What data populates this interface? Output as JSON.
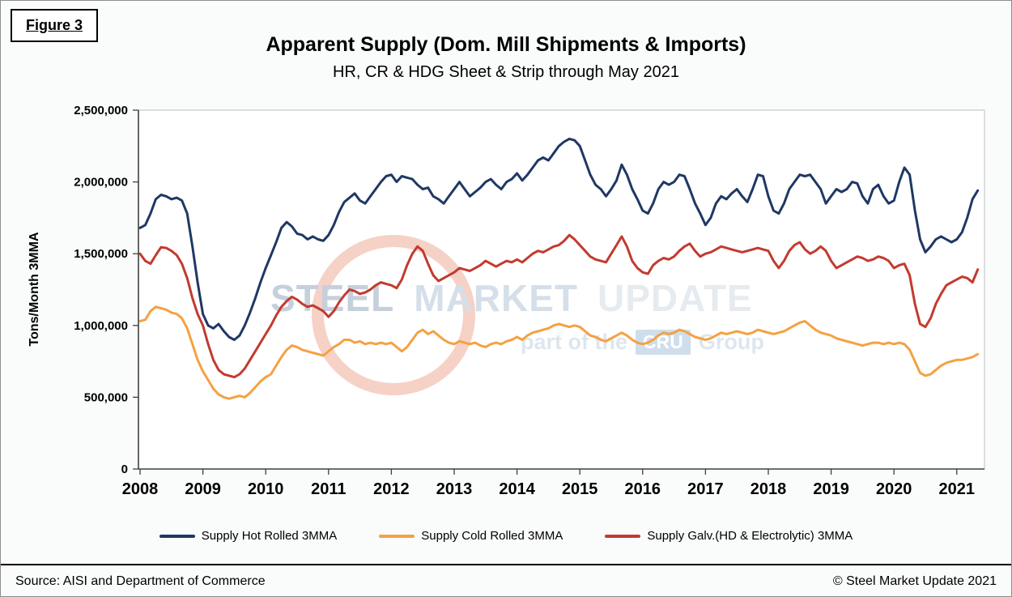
{
  "figure_label": "Figure 3",
  "title": "Apparent Supply (Dom. Mill Shipments & Imports)",
  "subtitle": "HR, CR & HDG Sheet & Strip through May 2021",
  "y_axis_title": "Tons/Month 3MMA",
  "watermark": {
    "word1": "STEEL",
    "word2": "MARKET",
    "word3": "UPDATE",
    "tagline_prefix": "part of the",
    "tagline_box": "CRU",
    "tagline_suffix": "Group"
  },
  "legend": {
    "items": [
      {
        "id": "hot-rolled",
        "label": "Supply Hot Rolled 3MMA",
        "color": "#1F3864"
      },
      {
        "id": "cold-rolled",
        "label": "Supply Cold Rolled 3MMA",
        "color": "#F5A142"
      },
      {
        "id": "galvanized",
        "label": "Supply Galv.(HD & Electrolytic) 3MMA",
        "color": "#C33A2F"
      }
    ]
  },
  "footer": {
    "source": "Source: AISI and Department of Commerce",
    "copyright": "© Steel Market Update 2021"
  },
  "chart_data": {
    "type": "line",
    "title": "Apparent Supply (Dom. Mill Shipments & Imports)",
    "subtitle": "HR, CR & HDG Sheet & Strip through May 2021",
    "ylabel": "Tons/Month 3MMA",
    "ylim": [
      0,
      2500000
    ],
    "grid": false,
    "legend_position": "bottom",
    "x_unit": "monthly observations, Jan 2008 through May 2021 (3-month moving average)",
    "x_start_year": 2008,
    "x_interval_months": 1,
    "x_ticks": [
      "2008",
      "2009",
      "2010",
      "2011",
      "2012",
      "2013",
      "2014",
      "2015",
      "2016",
      "2017",
      "2018",
      "2019",
      "2020",
      "2021"
    ],
    "y_ticks": [
      {
        "value": 0,
        "label": "0"
      },
      {
        "value": 500000,
        "label": "500,000"
      },
      {
        "value": 1000000,
        "label": "1,000,000"
      },
      {
        "value": 1500000,
        "label": "1,500,000"
      },
      {
        "value": 2000000,
        "label": "2,000,000"
      },
      {
        "value": 2500000,
        "label": "2,500,000"
      }
    ],
    "series": [
      {
        "id": "hot-rolled",
        "name": "Supply Hot Rolled 3MMA",
        "color": "#1F3864",
        "values": [
          1680000,
          1700000,
          1780000,
          1880000,
          1910000,
          1900000,
          1880000,
          1890000,
          1870000,
          1780000,
          1550000,
          1300000,
          1080000,
          1000000,
          980000,
          1010000,
          960000,
          920000,
          900000,
          930000,
          1000000,
          1090000,
          1190000,
          1300000,
          1400000,
          1490000,
          1580000,
          1680000,
          1720000,
          1690000,
          1640000,
          1630000,
          1600000,
          1620000,
          1600000,
          1590000,
          1630000,
          1700000,
          1790000,
          1860000,
          1890000,
          1920000,
          1870000,
          1850000,
          1900000,
          1950000,
          2000000,
          2040000,
          2050000,
          2000000,
          2040000,
          2030000,
          2020000,
          1980000,
          1950000,
          1960000,
          1900000,
          1880000,
          1850000,
          1900000,
          1950000,
          2000000,
          1950000,
          1900000,
          1930000,
          1960000,
          2000000,
          2020000,
          1980000,
          1950000,
          2000000,
          2020000,
          2060000,
          2010000,
          2050000,
          2100000,
          2150000,
          2170000,
          2150000,
          2200000,
          2250000,
          2280000,
          2300000,
          2290000,
          2250000,
          2150000,
          2050000,
          1980000,
          1950000,
          1900000,
          1950000,
          2010000,
          2120000,
          2050000,
          1950000,
          1880000,
          1800000,
          1780000,
          1850000,
          1950000,
          2000000,
          1980000,
          2000000,
          2050000,
          2040000,
          1950000,
          1850000,
          1780000,
          1700000,
          1750000,
          1850000,
          1900000,
          1880000,
          1920000,
          1950000,
          1900000,
          1860000,
          1950000,
          2050000,
          2040000,
          1900000,
          1800000,
          1780000,
          1850000,
          1950000,
          2000000,
          2050000,
          2040000,
          2050000,
          2000000,
          1950000,
          1850000,
          1900000,
          1950000,
          1930000,
          1950000,
          2000000,
          1990000,
          1900000,
          1850000,
          1950000,
          1980000,
          1900000,
          1850000,
          1870000,
          2000000,
          2100000,
          2050000,
          1800000,
          1600000,
          1510000,
          1550000,
          1600000,
          1620000,
          1600000,
          1580000,
          1600000,
          1650000,
          1750000,
          1880000,
          1940000
        ]
      },
      {
        "id": "cold-rolled",
        "name": "Supply Cold Rolled 3MMA",
        "color": "#F5A142",
        "values": [
          1030000,
          1040000,
          1100000,
          1130000,
          1120000,
          1110000,
          1090000,
          1080000,
          1050000,
          980000,
          870000,
          760000,
          680000,
          620000,
          560000,
          520000,
          500000,
          490000,
          500000,
          510000,
          500000,
          530000,
          570000,
          610000,
          640000,
          660000,
          720000,
          780000,
          830000,
          860000,
          850000,
          830000,
          820000,
          810000,
          800000,
          790000,
          820000,
          850000,
          870000,
          900000,
          900000,
          880000,
          890000,
          870000,
          880000,
          870000,
          880000,
          870000,
          880000,
          850000,
          820000,
          850000,
          900000,
          950000,
          970000,
          940000,
          960000,
          930000,
          900000,
          880000,
          870000,
          890000,
          880000,
          870000,
          880000,
          860000,
          850000,
          870000,
          880000,
          870000,
          890000,
          900000,
          920000,
          900000,
          930000,
          950000,
          960000,
          970000,
          980000,
          1000000,
          1010000,
          1000000,
          990000,
          1000000,
          990000,
          960000,
          930000,
          920000,
          900000,
          890000,
          910000,
          930000,
          950000,
          930000,
          900000,
          880000,
          870000,
          880000,
          900000,
          930000,
          950000,
          940000,
          950000,
          970000,
          960000,
          940000,
          920000,
          910000,
          900000,
          910000,
          930000,
          950000,
          940000,
          950000,
          960000,
          950000,
          940000,
          950000,
          970000,
          960000,
          950000,
          940000,
          950000,
          960000,
          980000,
          1000000,
          1020000,
          1030000,
          1000000,
          970000,
          950000,
          940000,
          930000,
          910000,
          900000,
          890000,
          880000,
          870000,
          860000,
          870000,
          880000,
          880000,
          870000,
          880000,
          870000,
          880000,
          870000,
          830000,
          750000,
          670000,
          650000,
          660000,
          690000,
          720000,
          740000,
          750000,
          760000,
          760000,
          770000,
          780000,
          800000
        ]
      },
      {
        "id": "galvanized",
        "name": "Supply Galv.(HD & Electrolytic) 3MMA",
        "color": "#C33A2F",
        "values": [
          1500000,
          1450000,
          1430000,
          1490000,
          1545000,
          1540000,
          1520000,
          1490000,
          1430000,
          1330000,
          1190000,
          1080000,
          1000000,
          870000,
          760000,
          690000,
          660000,
          650000,
          640000,
          660000,
          700000,
          760000,
          820000,
          880000,
          940000,
          1000000,
          1070000,
          1130000,
          1170000,
          1200000,
          1180000,
          1150000,
          1130000,
          1140000,
          1120000,
          1100000,
          1060000,
          1100000,
          1160000,
          1210000,
          1250000,
          1240000,
          1220000,
          1230000,
          1250000,
          1280000,
          1300000,
          1290000,
          1280000,
          1260000,
          1320000,
          1420000,
          1500000,
          1550000,
          1520000,
          1430000,
          1350000,
          1310000,
          1330000,
          1350000,
          1370000,
          1400000,
          1390000,
          1380000,
          1400000,
          1420000,
          1450000,
          1430000,
          1410000,
          1430000,
          1450000,
          1440000,
          1460000,
          1440000,
          1470000,
          1500000,
          1520000,
          1510000,
          1530000,
          1550000,
          1560000,
          1590000,
          1630000,
          1600000,
          1560000,
          1520000,
          1480000,
          1460000,
          1450000,
          1440000,
          1500000,
          1560000,
          1620000,
          1550000,
          1450000,
          1400000,
          1370000,
          1360000,
          1420000,
          1450000,
          1470000,
          1460000,
          1480000,
          1520000,
          1550000,
          1570000,
          1520000,
          1480000,
          1500000,
          1510000,
          1530000,
          1550000,
          1540000,
          1530000,
          1520000,
          1510000,
          1520000,
          1530000,
          1540000,
          1530000,
          1520000,
          1450000,
          1400000,
          1450000,
          1520000,
          1560000,
          1580000,
          1530000,
          1500000,
          1520000,
          1550000,
          1520000,
          1450000,
          1400000,
          1420000,
          1440000,
          1460000,
          1480000,
          1470000,
          1450000,
          1460000,
          1480000,
          1470000,
          1450000,
          1400000,
          1420000,
          1430000,
          1350000,
          1150000,
          1010000,
          990000,
          1050000,
          1150000,
          1220000,
          1280000,
          1300000,
          1320000,
          1340000,
          1330000,
          1300000,
          1390000
        ]
      }
    ]
  }
}
